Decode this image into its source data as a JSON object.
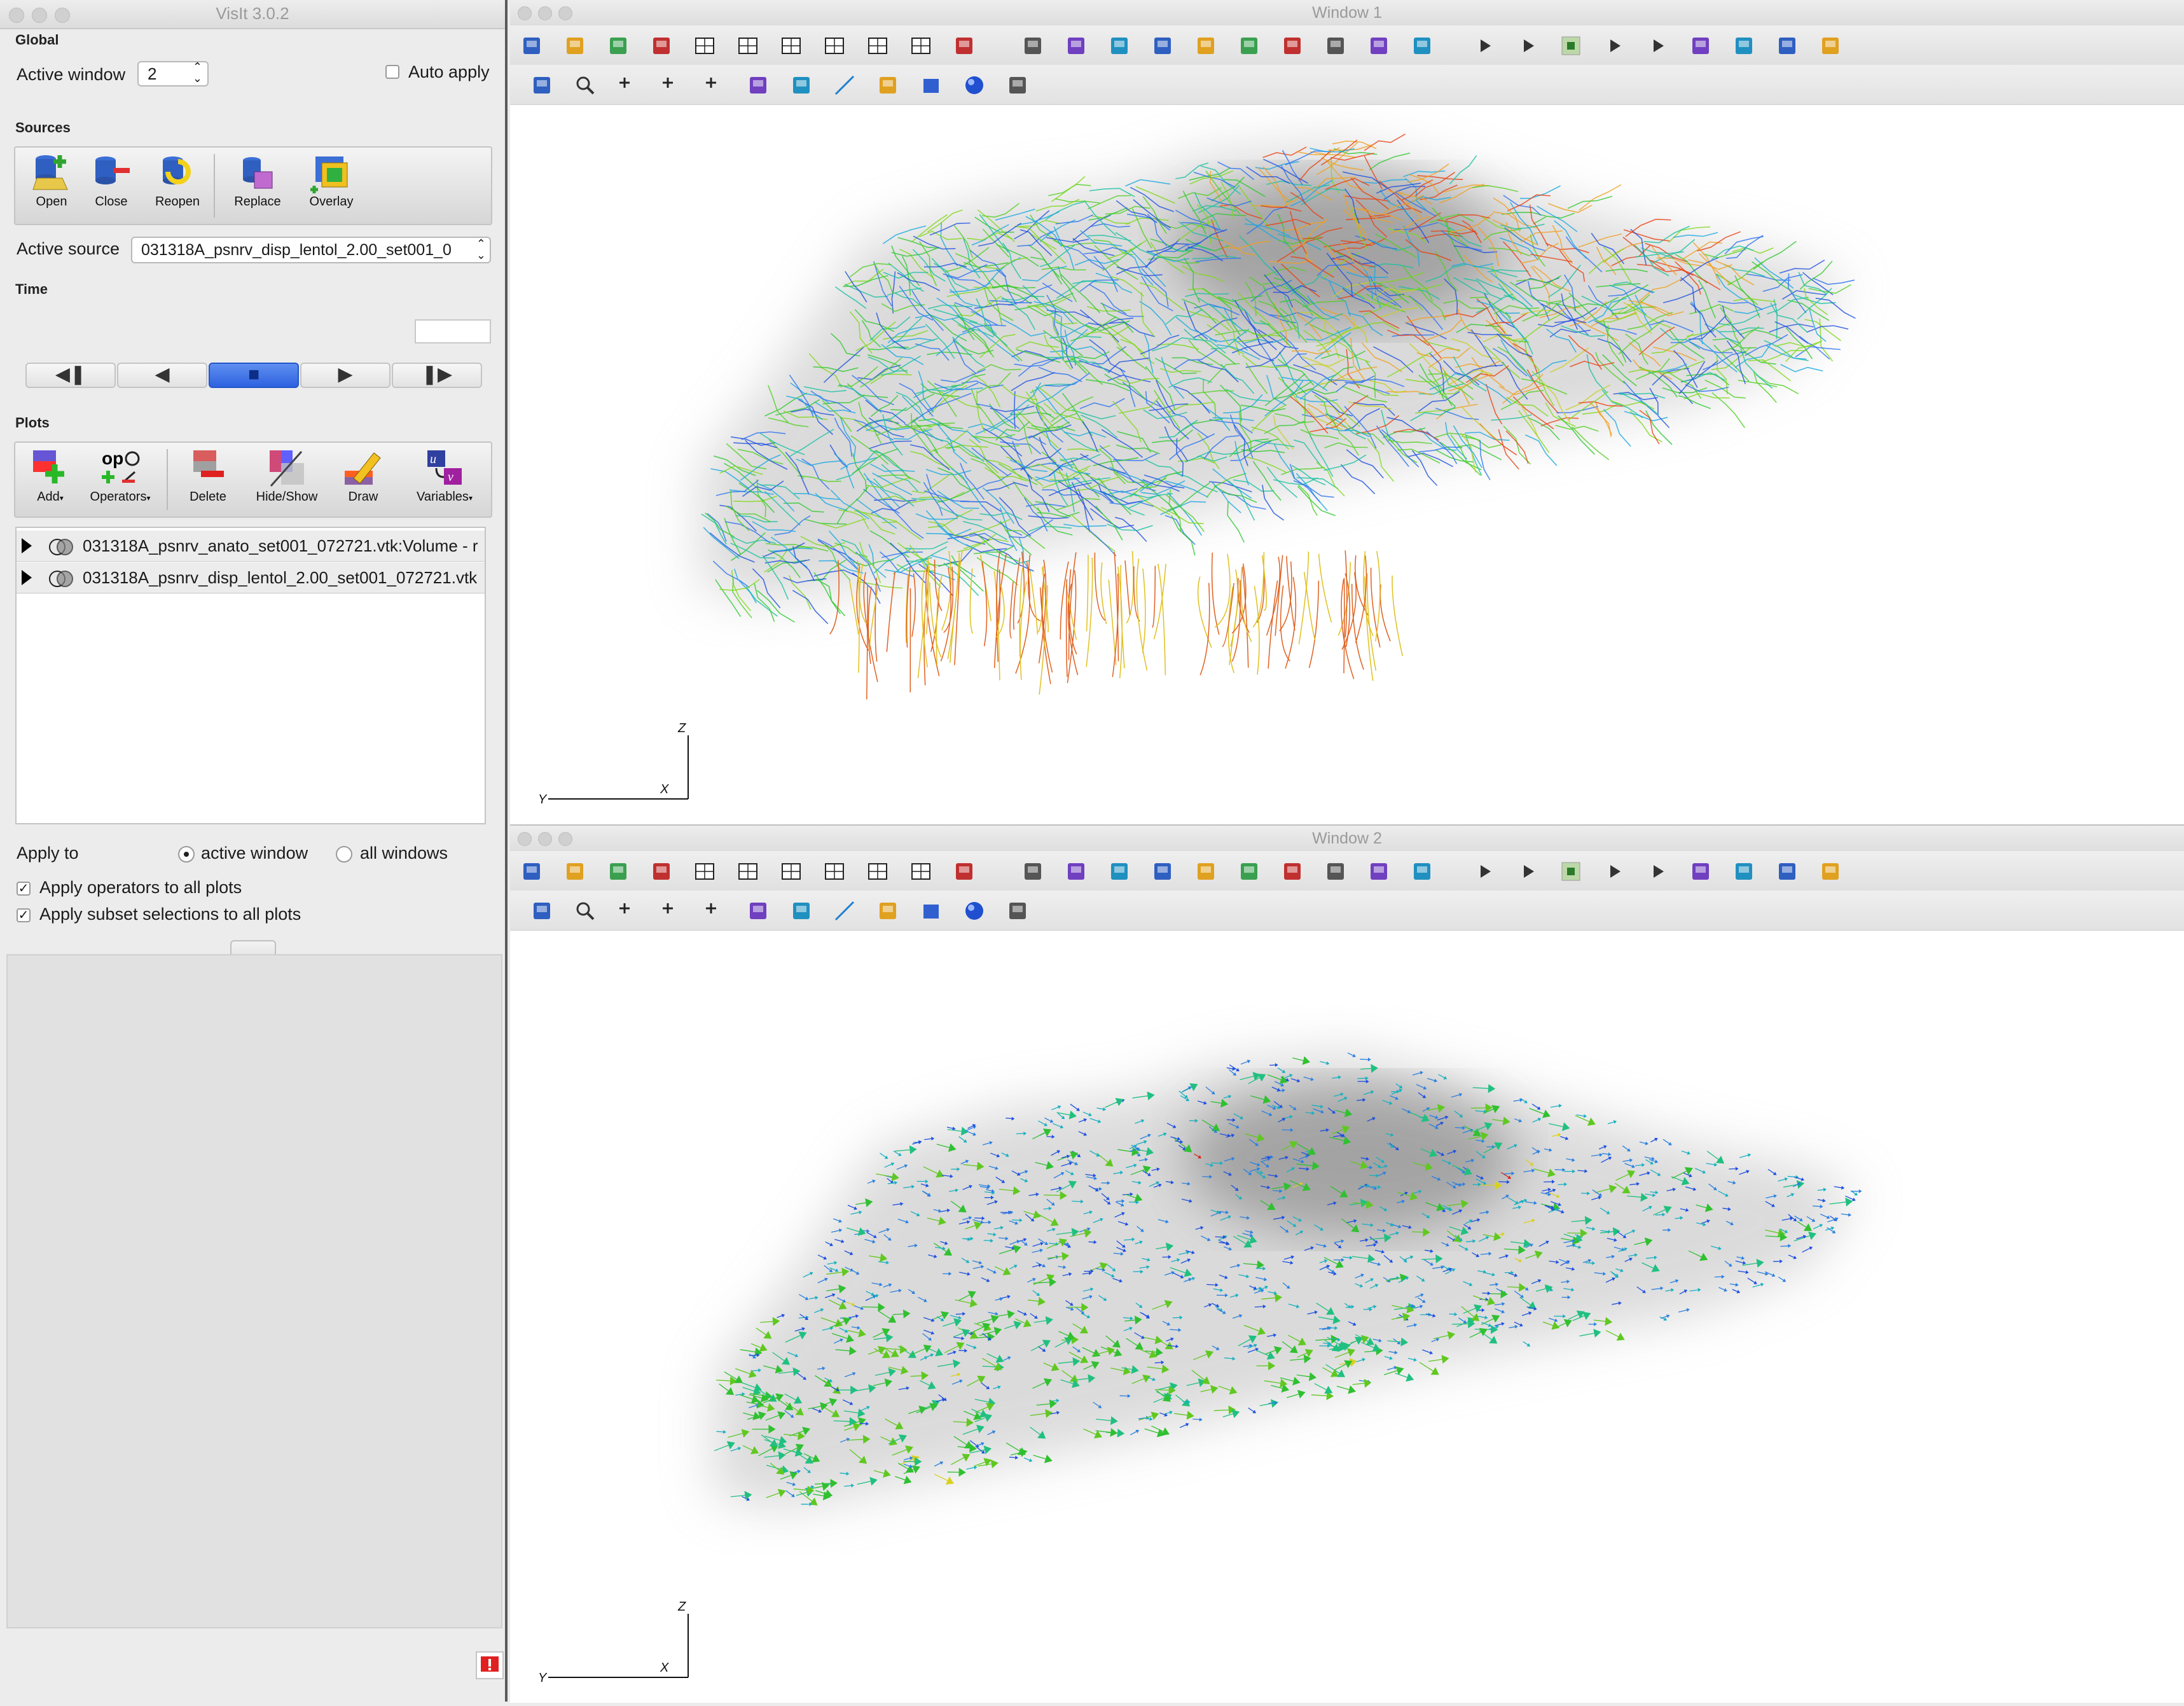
{
  "control": {
    "title": "VisIt 3.0.2",
    "global_label": "Global",
    "active_window_label": "Active window",
    "active_window_value": "2",
    "auto_apply_label": "Auto apply",
    "sources_label": "Sources",
    "source_tools": [
      {
        "label": "Open",
        "icon": "open-database-icon"
      },
      {
        "label": "Close",
        "icon": "close-database-icon"
      },
      {
        "label": "Reopen",
        "icon": "reopen-database-icon"
      },
      {
        "label": "Replace",
        "icon": "replace-database-icon"
      },
      {
        "label": "Overlay",
        "icon": "overlay-database-icon"
      }
    ],
    "active_source_label": "Active source",
    "active_source_value": "031318A_psnrv_disp_lentol_2.00_set001_0",
    "time_label": "Time",
    "plots_label": "Plots",
    "plot_tools": [
      {
        "label": "Add",
        "icon": "add-plot-icon"
      },
      {
        "label": "Operators",
        "icon": "operators-icon"
      },
      {
        "label": "Delete",
        "icon": "delete-plot-icon"
      },
      {
        "label": "Hide/Show",
        "icon": "hide-show-icon"
      },
      {
        "label": "Draw",
        "icon": "draw-icon"
      },
      {
        "label": "Variables",
        "icon": "variables-icon"
      }
    ],
    "plots": [
      "031318A_psnrv_anato_set001_072721.vtk:Volume - r",
      "031318A_psnrv_disp_lentol_2.00_set001_072721.vtk"
    ],
    "apply_to_label": "Apply to",
    "apply_active_window": "active window",
    "apply_all_windows": "all windows",
    "apply_operators_all": "Apply operators to all plots",
    "apply_subset_all": "Apply subset selections to all plots"
  },
  "window1": {
    "title": "Window 1",
    "axis": {
      "z": "Z",
      "y": "Y",
      "x": "X"
    }
  },
  "window2": {
    "title": "Window 2",
    "axis": {
      "z": "Z",
      "y": "Y",
      "x": "X"
    }
  },
  "colors": {
    "accent": "#2e62e0",
    "viz_red": "#e02010",
    "viz_green": "#30c830",
    "viz_blue": "#2050e0"
  }
}
